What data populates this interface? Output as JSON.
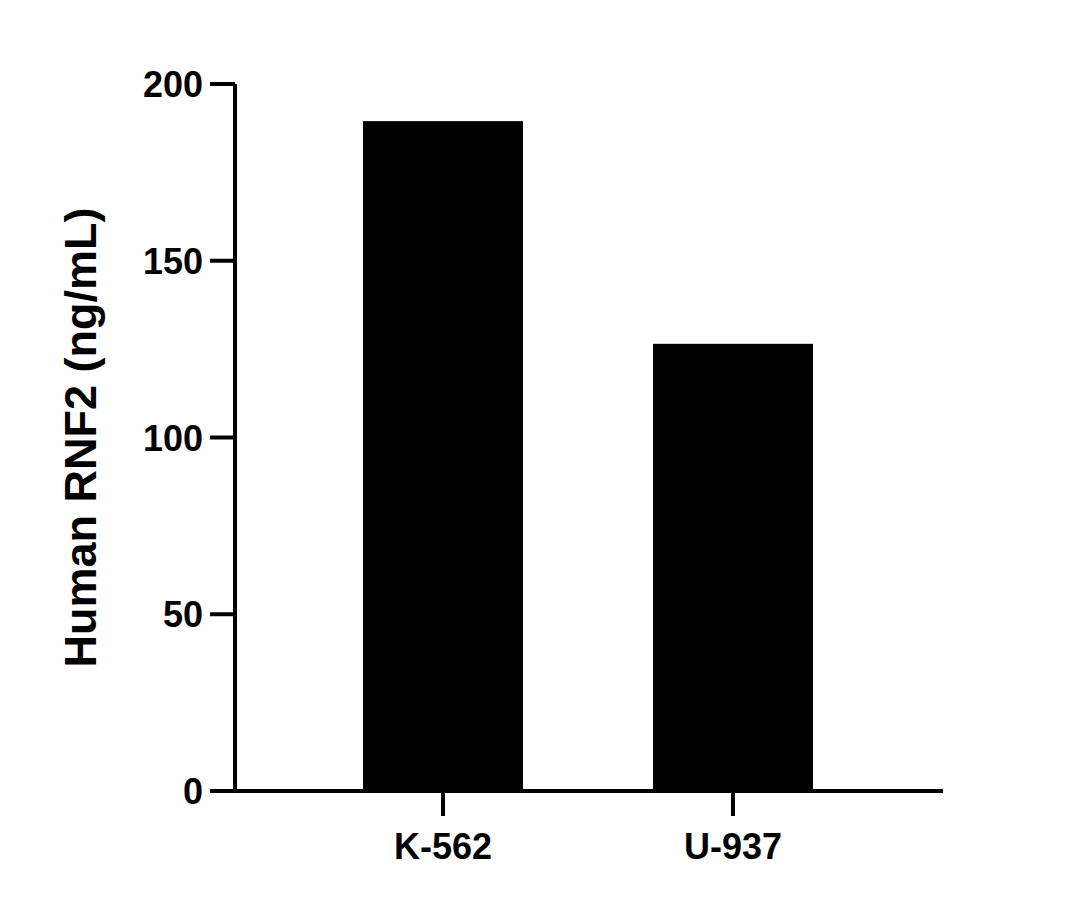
{
  "chart_data": {
    "type": "bar",
    "categories": [
      "K-562",
      "U-937"
    ],
    "values": [
      189.5,
      126.5
    ],
    "color": "#000000",
    "ylabel": "Human RNF2 (ng/mL)",
    "ylim": [
      0,
      200
    ],
    "yticks": [
      0,
      50,
      100,
      150,
      200
    ],
    "grid": false
  }
}
